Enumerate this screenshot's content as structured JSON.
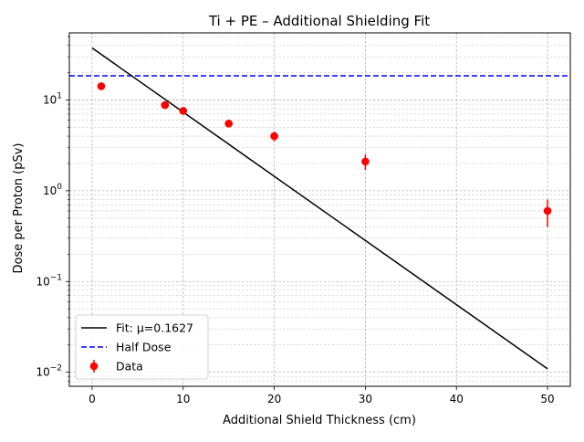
{
  "chart_data": {
    "type": "scatter",
    "title": "Ti + PE – Additional Shielding Fit",
    "xlabel": "Additional Shield Thickness (cm)",
    "ylabel": "Dose per Proton (pSv)",
    "xlim": [
      -2.5,
      52.5
    ],
    "ylim": [
      0.007,
      55
    ],
    "yscale": "log",
    "grid": "both (major and minor, dashed)",
    "legend_position": "lower-left",
    "x_ticks": [
      0,
      10,
      20,
      30,
      40,
      50
    ],
    "y_ticks": [
      {
        "value": 0.01,
        "base": "10",
        "exp": "−2"
      },
      {
        "value": 0.1,
        "base": "10",
        "exp": "−1"
      },
      {
        "value": 1,
        "base": "10",
        "exp": "0"
      },
      {
        "value": 10,
        "base": "10",
        "exp": "1"
      }
    ],
    "series": [
      {
        "name": "Data",
        "kind": "errorbar",
        "color": "#ff0000",
        "points": [
          {
            "x": 1,
            "y": 14.2,
            "err": 0.8
          },
          {
            "x": 8,
            "y": 8.8,
            "err": 0.6
          },
          {
            "x": 10,
            "y": 7.6,
            "err": 0.5
          },
          {
            "x": 15,
            "y": 5.5,
            "err": 0.45
          },
          {
            "x": 20,
            "y": 4.0,
            "err": 0.5
          },
          {
            "x": 30,
            "y": 2.1,
            "err": 0.4
          },
          {
            "x": 50,
            "y": 0.6,
            "err": 0.2
          }
        ]
      },
      {
        "name": "Fit: μ=0.1627",
        "kind": "line",
        "color": "#000000",
        "points": [
          {
            "x": 0,
            "y": 37.5
          },
          {
            "x": 50,
            "y": 0.0109
          }
        ]
      },
      {
        "name": "Half Dose",
        "kind": "hline",
        "color": "#0000ff",
        "style": "dashed",
        "y": 18.5
      }
    ],
    "legend_order": [
      "Fit: μ=0.1627",
      "Half Dose",
      "Data"
    ]
  }
}
